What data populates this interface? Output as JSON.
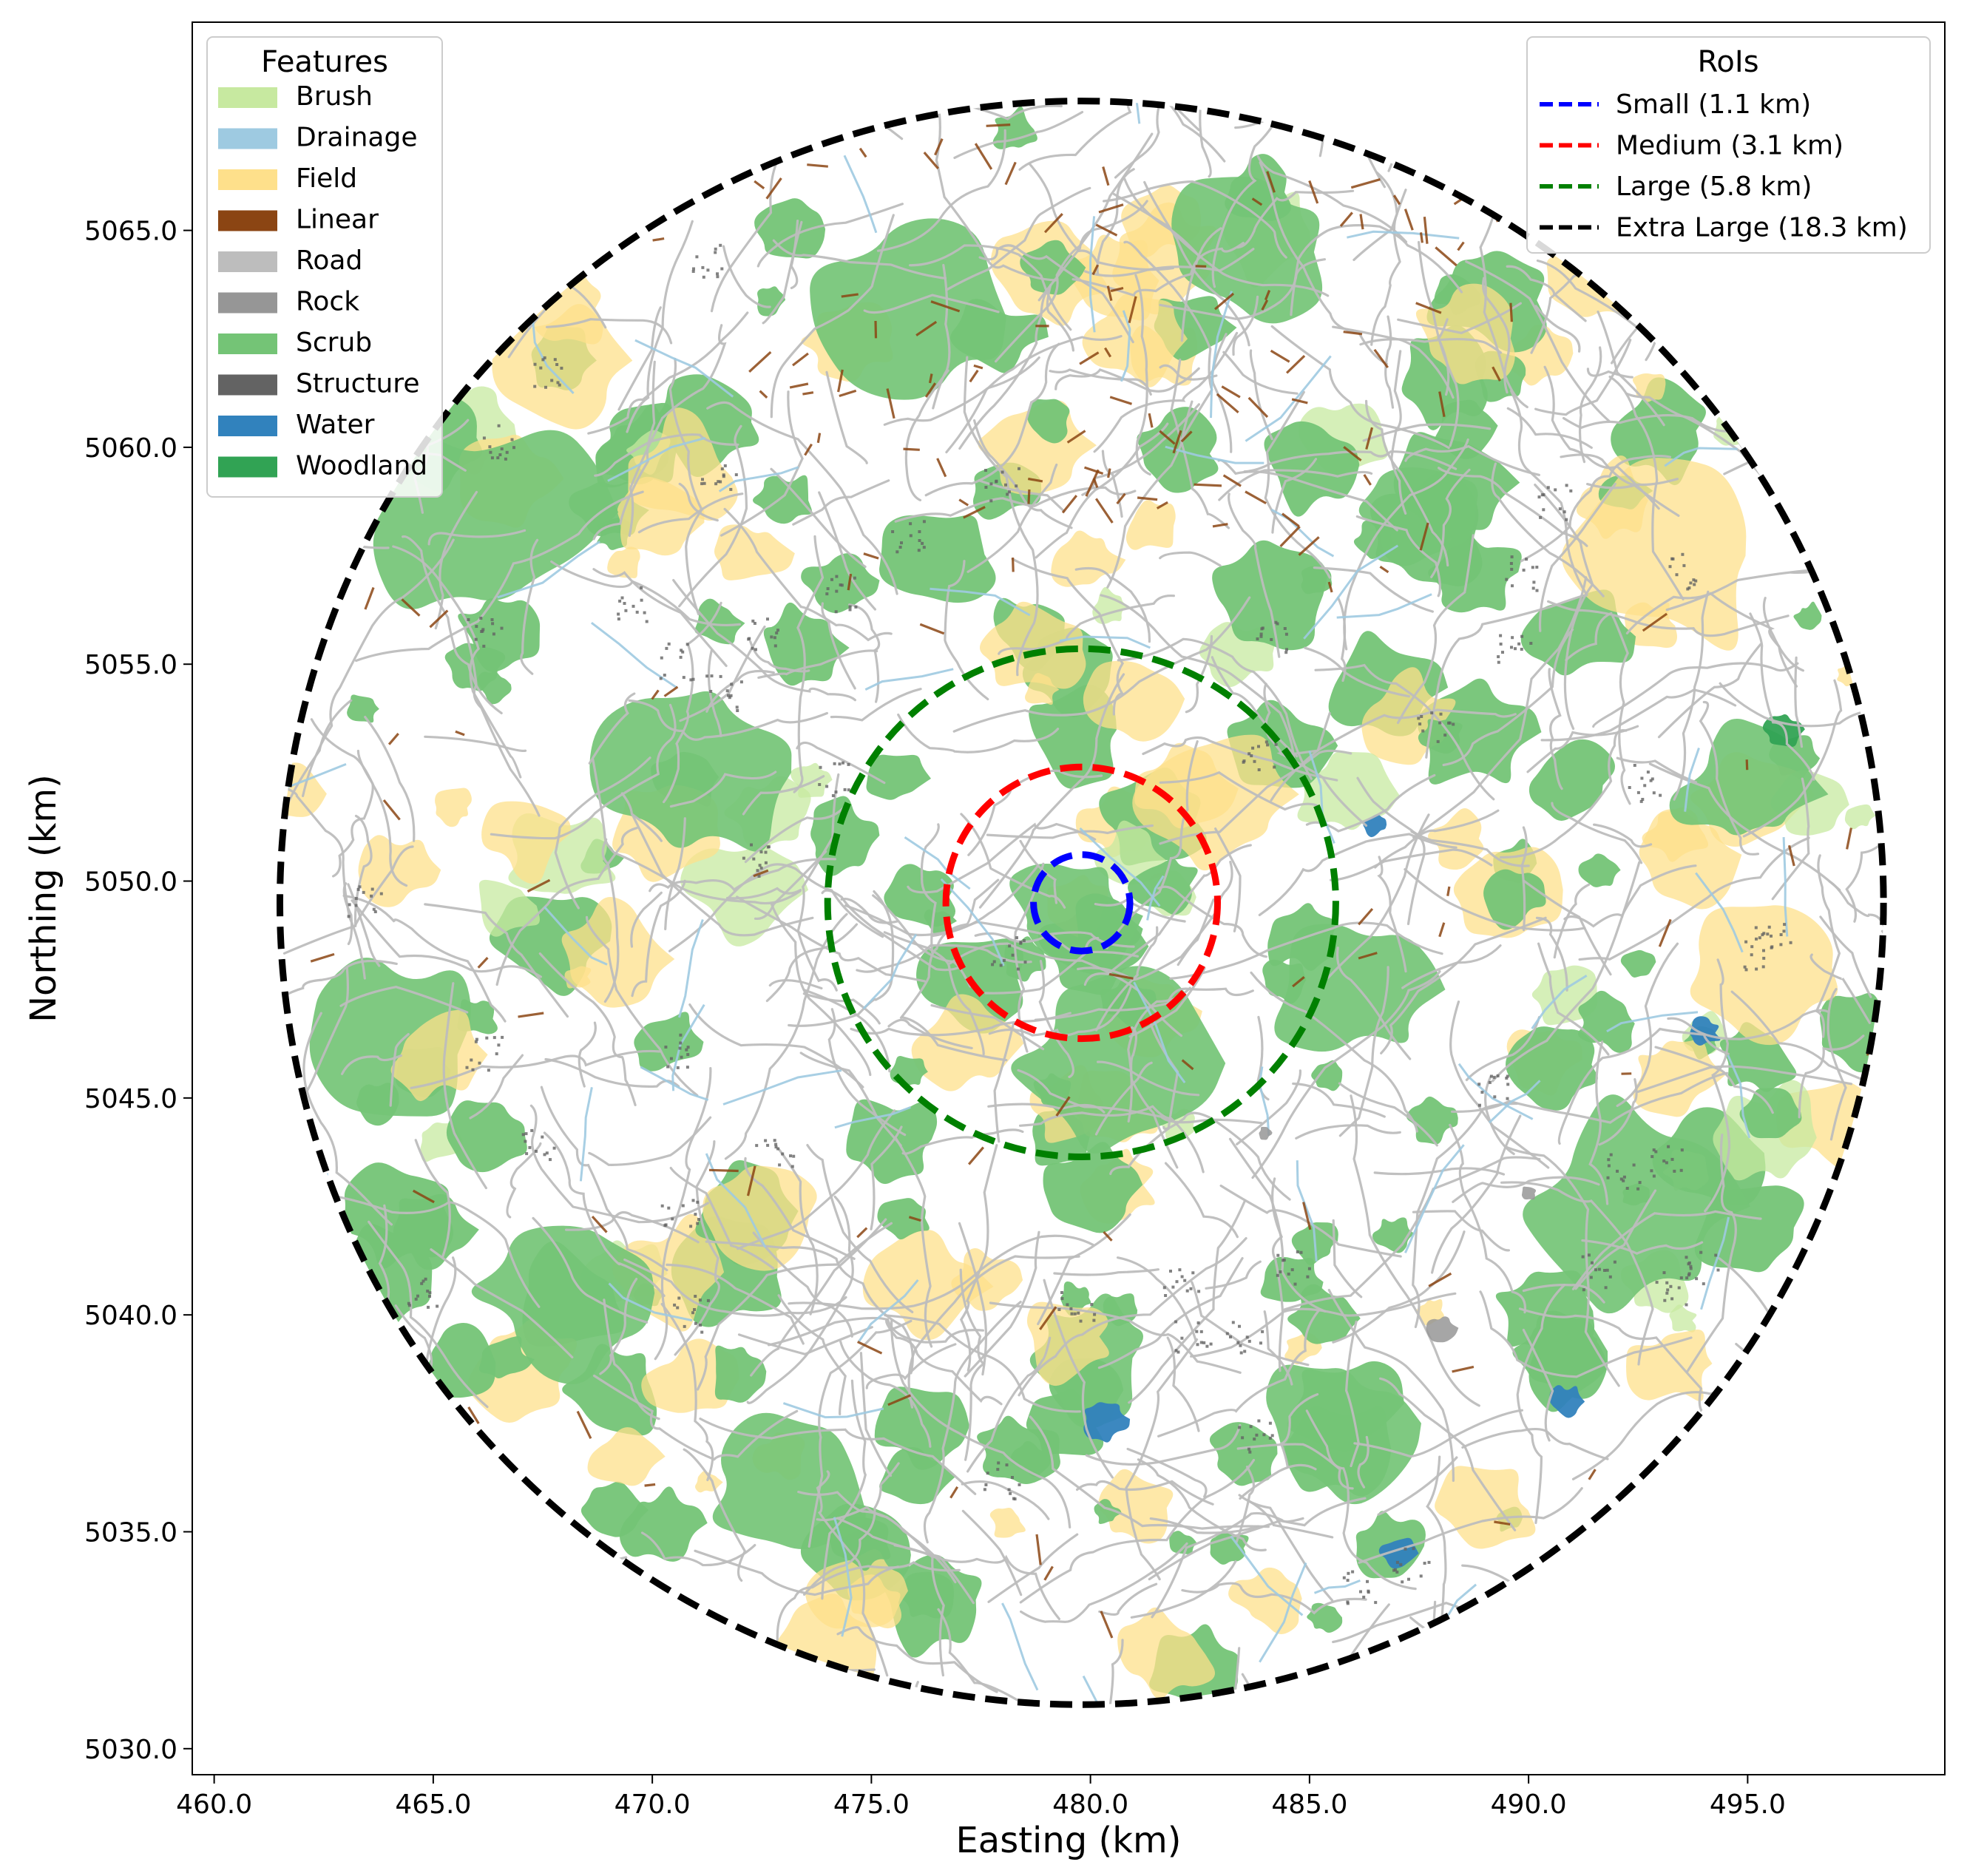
{
  "chart_data": {
    "type": "map",
    "xlabel": "Easting (km)",
    "ylabel": "Northing (km)",
    "xlim": [
      459.5,
      499.5
    ],
    "ylim": [
      5029.4,
      5069.8
    ],
    "x_ticks": [
      "460.0",
      "465.0",
      "470.0",
      "475.0",
      "480.0",
      "485.0",
      "490.0",
      "495.0"
    ],
    "x_tick_values": [
      460,
      465,
      470,
      475,
      480,
      485,
      490,
      495
    ],
    "y_ticks": [
      "5030.0",
      "5035.0",
      "5040.0",
      "5045.0",
      "5050.0",
      "5055.0",
      "5060.0",
      "5065.0"
    ],
    "y_tick_values": [
      5030,
      5035,
      5040,
      5045,
      5050,
      5055,
      5060,
      5065
    ],
    "center": {
      "easting": 479.8,
      "northing": 5049.5
    },
    "features_legend": {
      "title": "Features",
      "placement": "top-left",
      "items": [
        {
          "label": "Brush",
          "color": "#c7e9a0"
        },
        {
          "label": "Drainage",
          "color": "#9ecae1"
        },
        {
          "label": "Field",
          "color": "#fee08b"
        },
        {
          "label": "Linear",
          "color": "#8b4513"
        },
        {
          "label": "Road",
          "color": "#bdbdbd"
        },
        {
          "label": "Rock",
          "color": "#969696"
        },
        {
          "label": "Scrub",
          "color": "#74c476"
        },
        {
          "label": "Structure",
          "color": "#636363"
        },
        {
          "label": "Water",
          "color": "#3182bd"
        },
        {
          "label": "Woodland",
          "color": "#31a354"
        }
      ]
    },
    "rois_legend": {
      "title": "RoIs",
      "placement": "top-right",
      "items": [
        {
          "label": "Small (1.1 km)",
          "color": "#0000ff",
          "radius_km": 1.1
        },
        {
          "label": "Medium (3.1 km)",
          "color": "#ff0000",
          "radius_km": 3.1
        },
        {
          "label": "Large (5.8 km)",
          "color": "#008000",
          "radius_km": 5.8
        },
        {
          "label": "Extra Large (18.3 km)",
          "color": "#000000",
          "radius_km": 18.3
        }
      ]
    },
    "land_cover_patches": [
      {
        "type": "Scrub",
        "e": 466.0,
        "n": 5058.5,
        "r": 3.0
      },
      {
        "type": "Scrub",
        "e": 471.0,
        "n": 5052.5,
        "r": 2.4
      },
      {
        "type": "Scrub",
        "e": 476.0,
        "n": 5063.0,
        "r": 2.6
      },
      {
        "type": "Scrub",
        "e": 483.5,
        "n": 5064.5,
        "r": 2.2
      },
      {
        "type": "Scrub",
        "e": 464.0,
        "n": 5046.0,
        "r": 2.5
      },
      {
        "type": "Scrub",
        "e": 468.0,
        "n": 5040.5,
        "r": 2.2
      },
      {
        "type": "Scrub",
        "e": 473.0,
        "n": 5036.0,
        "r": 2.0
      },
      {
        "type": "Scrub",
        "e": 480.5,
        "n": 5045.8,
        "r": 2.4
      },
      {
        "type": "Scrub",
        "e": 479.5,
        "n": 5049.2,
        "r": 1.6
      },
      {
        "type": "Scrub",
        "e": 486.0,
        "n": 5047.5,
        "r": 2.0
      },
      {
        "type": "Scrub",
        "e": 492.5,
        "n": 5042.5,
        "r": 2.6
      },
      {
        "type": "Scrub",
        "e": 495.0,
        "n": 5052.0,
        "r": 1.8
      },
      {
        "type": "Scrub",
        "e": 485.5,
        "n": 5037.5,
        "r": 2.0
      },
      {
        "type": "Scrub",
        "e": 480.0,
        "n": 5039.0,
        "r": 1.6
      },
      {
        "type": "Scrub",
        "e": 487.5,
        "n": 5058.5,
        "r": 1.4
      },
      {
        "type": "Field",
        "e": 483.0,
        "n": 5052.0,
        "r": 2.0
      },
      {
        "type": "Field",
        "e": 493.0,
        "n": 5057.5,
        "r": 2.8
      },
      {
        "type": "Field",
        "e": 495.5,
        "n": 5048.0,
        "r": 2.0
      },
      {
        "type": "Field",
        "e": 468.0,
        "n": 5062.0,
        "r": 1.6
      },
      {
        "type": "Field",
        "e": 465.0,
        "n": 5046.0,
        "r": 1.2
      },
      {
        "type": "Field",
        "e": 481.0,
        "n": 5062.5,
        "r": 1.4
      },
      {
        "type": "Field",
        "e": 489.0,
        "n": 5035.5,
        "r": 1.3
      },
      {
        "type": "Field",
        "e": 479.5,
        "n": 5039.5,
        "r": 1.2
      },
      {
        "type": "Field",
        "e": 491.5,
        "n": 5064.0,
        "r": 1.2
      },
      {
        "type": "Water",
        "e": 487.0,
        "n": 5034.5,
        "r": 0.5
      },
      {
        "type": "Water",
        "e": 490.8,
        "n": 5038.0,
        "r": 0.45
      },
      {
        "type": "Water",
        "e": 480.3,
        "n": 5037.6,
        "r": 0.6
      },
      {
        "type": "Water",
        "e": 494.0,
        "n": 5046.5,
        "r": 0.45
      },
      {
        "type": "Water",
        "e": 486.5,
        "n": 5051.3,
        "r": 0.3
      },
      {
        "type": "Woodland",
        "e": 495.8,
        "n": 5053.5,
        "r": 0.5
      }
    ]
  }
}
